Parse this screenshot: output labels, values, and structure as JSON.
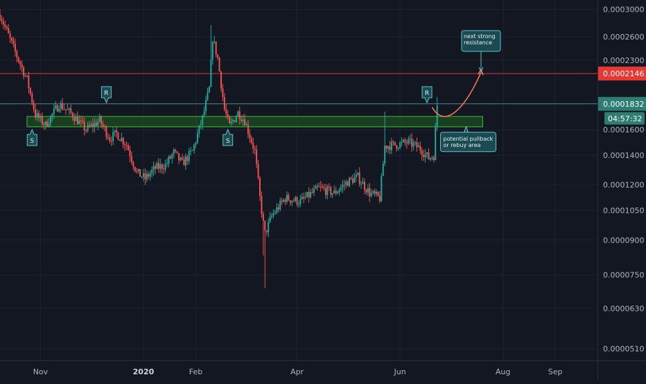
{
  "theme": {
    "background": "#131722",
    "grid": "#1e222d",
    "axis_text": "#b2b5be",
    "up": "#26a69a",
    "down": "#ef5350",
    "resistance": "#e53935",
    "current_line": "#4f8a8f",
    "zone_fill": "#1f5e1f",
    "zone_stroke": "#3fbf3f",
    "callout_fill": "#1b4a52",
    "callout_stroke": "#5ec6cf",
    "arrow_up": "#ff7a5c"
  },
  "price_axis": {
    "ticks": [
      "0.0003000",
      "0.0002600",
      "0.0002300",
      "0.0001600",
      "0.0001400",
      "0.0001200",
      "0.0001050",
      "0.0000900",
      "0.0000750",
      "0.0000630",
      "0.0000510"
    ]
  },
  "time_axis": {
    "ticks": [
      {
        "label": "Nov",
        "bold": false
      },
      {
        "label": "2020",
        "bold": true
      },
      {
        "label": "Feb",
        "bold": false
      },
      {
        "label": "Apr",
        "bold": false
      },
      {
        "label": "Jun",
        "bold": false
      },
      {
        "label": "Aug",
        "bold": false
      },
      {
        "label": "Sep",
        "bold": false
      }
    ]
  },
  "price_labels": {
    "resistance": "0.0002146",
    "current": "0.0001832",
    "countdown": "04:57:32"
  },
  "annotations": {
    "support_tag": "S",
    "resistance_tag": "R",
    "next_resistance": [
      "next strong",
      "resistance"
    ],
    "pullback": [
      "potential pullback",
      "or rebuy area"
    ]
  },
  "chart_data": {
    "type": "candlestick",
    "scale": "log",
    "ylim": [
      4.8e-05,
      0.000315
    ],
    "x_start": "2019-10-08",
    "x_end": "2020-09-26",
    "xlim": [
      "2019-10-08",
      "2020-09-26"
    ],
    "horizontal_lines": [
      {
        "name": "resistance",
        "value": 0.0002146
      },
      {
        "name": "current",
        "value": 0.0001832
      }
    ],
    "zone": {
      "from_date": "2019-10-24",
      "to_date": "2020-07-20",
      "low": 0.0001625,
      "high": 0.0001715
    },
    "support_markers": [
      {
        "label": "S",
        "date": "2019-10-27"
      },
      {
        "label": "S",
        "date": "2020-02-20"
      }
    ],
    "resistance_markers": [
      {
        "label": "R",
        "date": "2019-12-10"
      },
      {
        "label": "R",
        "date": "2020-06-17"
      }
    ],
    "projection": [
      {
        "date": "2020-06-20",
        "value": 0.00018
      },
      {
        "date": "2020-06-28",
        "value": 0.000169
      },
      {
        "date": "2020-07-10",
        "value": 0.000187
      },
      {
        "date": "2020-07-19",
        "value": 0.000216
      }
    ],
    "series": [
      {
        "dates": [
          "2019-10-08",
          "2019-10-13",
          "2019-10-18",
          "2019-10-24",
          "2019-10-29",
          "2019-11-04",
          "2019-11-12",
          "2019-11-20",
          "2019-11-28",
          "2019-12-06",
          "2019-12-12",
          "2019-12-16",
          "2019-12-22",
          "2019-12-28",
          "2020-01-02",
          "2020-01-08",
          "2020-01-14",
          "2020-01-19",
          "2020-01-24",
          "2020-01-30",
          "2020-02-05",
          "2020-02-09",
          "2020-02-11",
          "2020-02-14",
          "2020-02-18",
          "2020-02-21",
          "2020-02-26",
          "2020-03-01",
          "2020-03-04",
          "2020-03-07",
          "2020-03-10",
          "2020-03-12",
          "2020-03-13",
          "2020-03-17",
          "2020-03-25",
          "2020-04-03",
          "2020-04-14",
          "2020-04-23",
          "2020-05-01",
          "2020-05-07",
          "2020-05-14",
          "2020-05-20",
          "2020-05-23",
          "2020-05-30",
          "2020-06-06",
          "2020-06-13",
          "2020-06-18",
          "2020-06-21",
          "2020-06-23"
        ],
        "values": [
          0.000292,
          0.000262,
          0.000235,
          0.000208,
          0.000173,
          0.000164,
          0.000183,
          0.000173,
          0.00016,
          0.000168,
          0.000153,
          0.000157,
          0.000148,
          0.000128,
          0.000124,
          0.000131,
          0.000133,
          0.000142,
          0.000134,
          0.000143,
          0.00017,
          0.000198,
          0.000258,
          0.000232,
          0.000178,
          0.000163,
          0.000175,
          0.000168,
          0.000155,
          0.000143,
          0.000112,
          9.8e-05,
          9.3e-05,
          0.000102,
          0.000112,
          0.00011,
          0.000118,
          0.000115,
          0.000122,
          0.000125,
          0.000115,
          0.000112,
          0.000147,
          0.000148,
          0.00015,
          0.000145,
          0.000138,
          0.00014,
          0.000182
        ]
      }
    ]
  }
}
